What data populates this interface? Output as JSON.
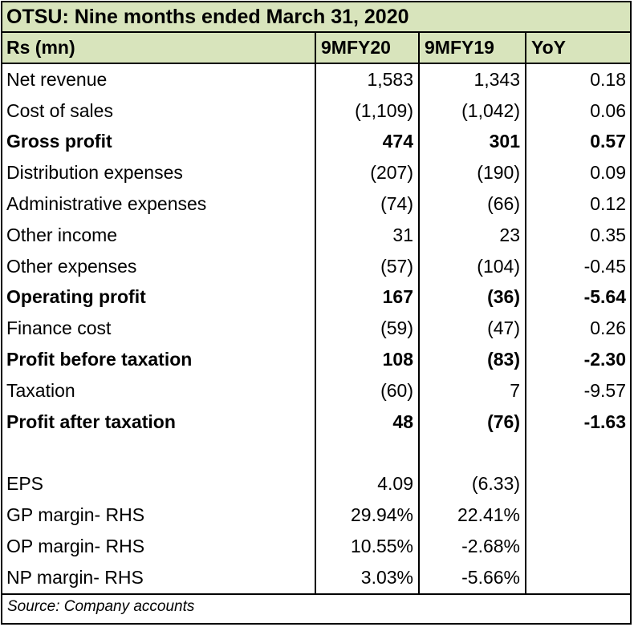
{
  "title": "OTSU: Nine months ended March 31, 2020",
  "header": {
    "label": "Rs (mn)",
    "col1": "9MFY20",
    "col2": "9MFY19",
    "col3": "YoY"
  },
  "rows": [
    {
      "label": "Net revenue",
      "a": "1,583",
      "b": "1,343",
      "c": "0.18",
      "bold": false
    },
    {
      "label": "Cost of sales",
      "a": "(1,109)",
      "b": "(1,042)",
      "c": "0.06",
      "bold": false
    },
    {
      "label": "Gross profit",
      "a": "474",
      "b": "301",
      "c": "0.57",
      "bold": true
    },
    {
      "label": "Distribution expenses",
      "a": "(207)",
      "b": "(190)",
      "c": "0.09",
      "bold": false
    },
    {
      "label": "Administrative expenses",
      "a": "(74)",
      "b": "(66)",
      "c": "0.12",
      "bold": false
    },
    {
      "label": "Other income",
      "a": "31",
      "b": "23",
      "c": "0.35",
      "bold": false
    },
    {
      "label": "Other expenses",
      "a": "(57)",
      "b": "(104)",
      "c": "-0.45",
      "bold": false
    },
    {
      "label": "Operating profit",
      "a": "167",
      "b": "(36)",
      "c": "-5.64",
      "bold": true
    },
    {
      "label": "Finance cost",
      "a": "(59)",
      "b": "(47)",
      "c": "0.26",
      "bold": false
    },
    {
      "label": "Profit before taxation",
      "a": "108",
      "b": "(83)",
      "c": "-2.30",
      "bold": true
    },
    {
      "label": "Taxation",
      "a": "(60)",
      "b": "7",
      "c": "-9.57",
      "bold": false
    },
    {
      "label": "Profit after taxation",
      "a": "48",
      "b": "(76)",
      "c": "-1.63",
      "bold": true
    }
  ],
  "ratios": [
    {
      "label": "EPS",
      "a": "4.09",
      "b": "(6.33)"
    },
    {
      "label": "GP margin- RHS",
      "a": "29.94%",
      "b": "22.41%"
    },
    {
      "label": "OP margin- RHS",
      "a": "10.55%",
      "b": "-2.68%"
    },
    {
      "label": "NP margin- RHS",
      "a": "3.03%",
      "b": "-5.66%"
    }
  ],
  "source": "Source: Company accounts"
}
